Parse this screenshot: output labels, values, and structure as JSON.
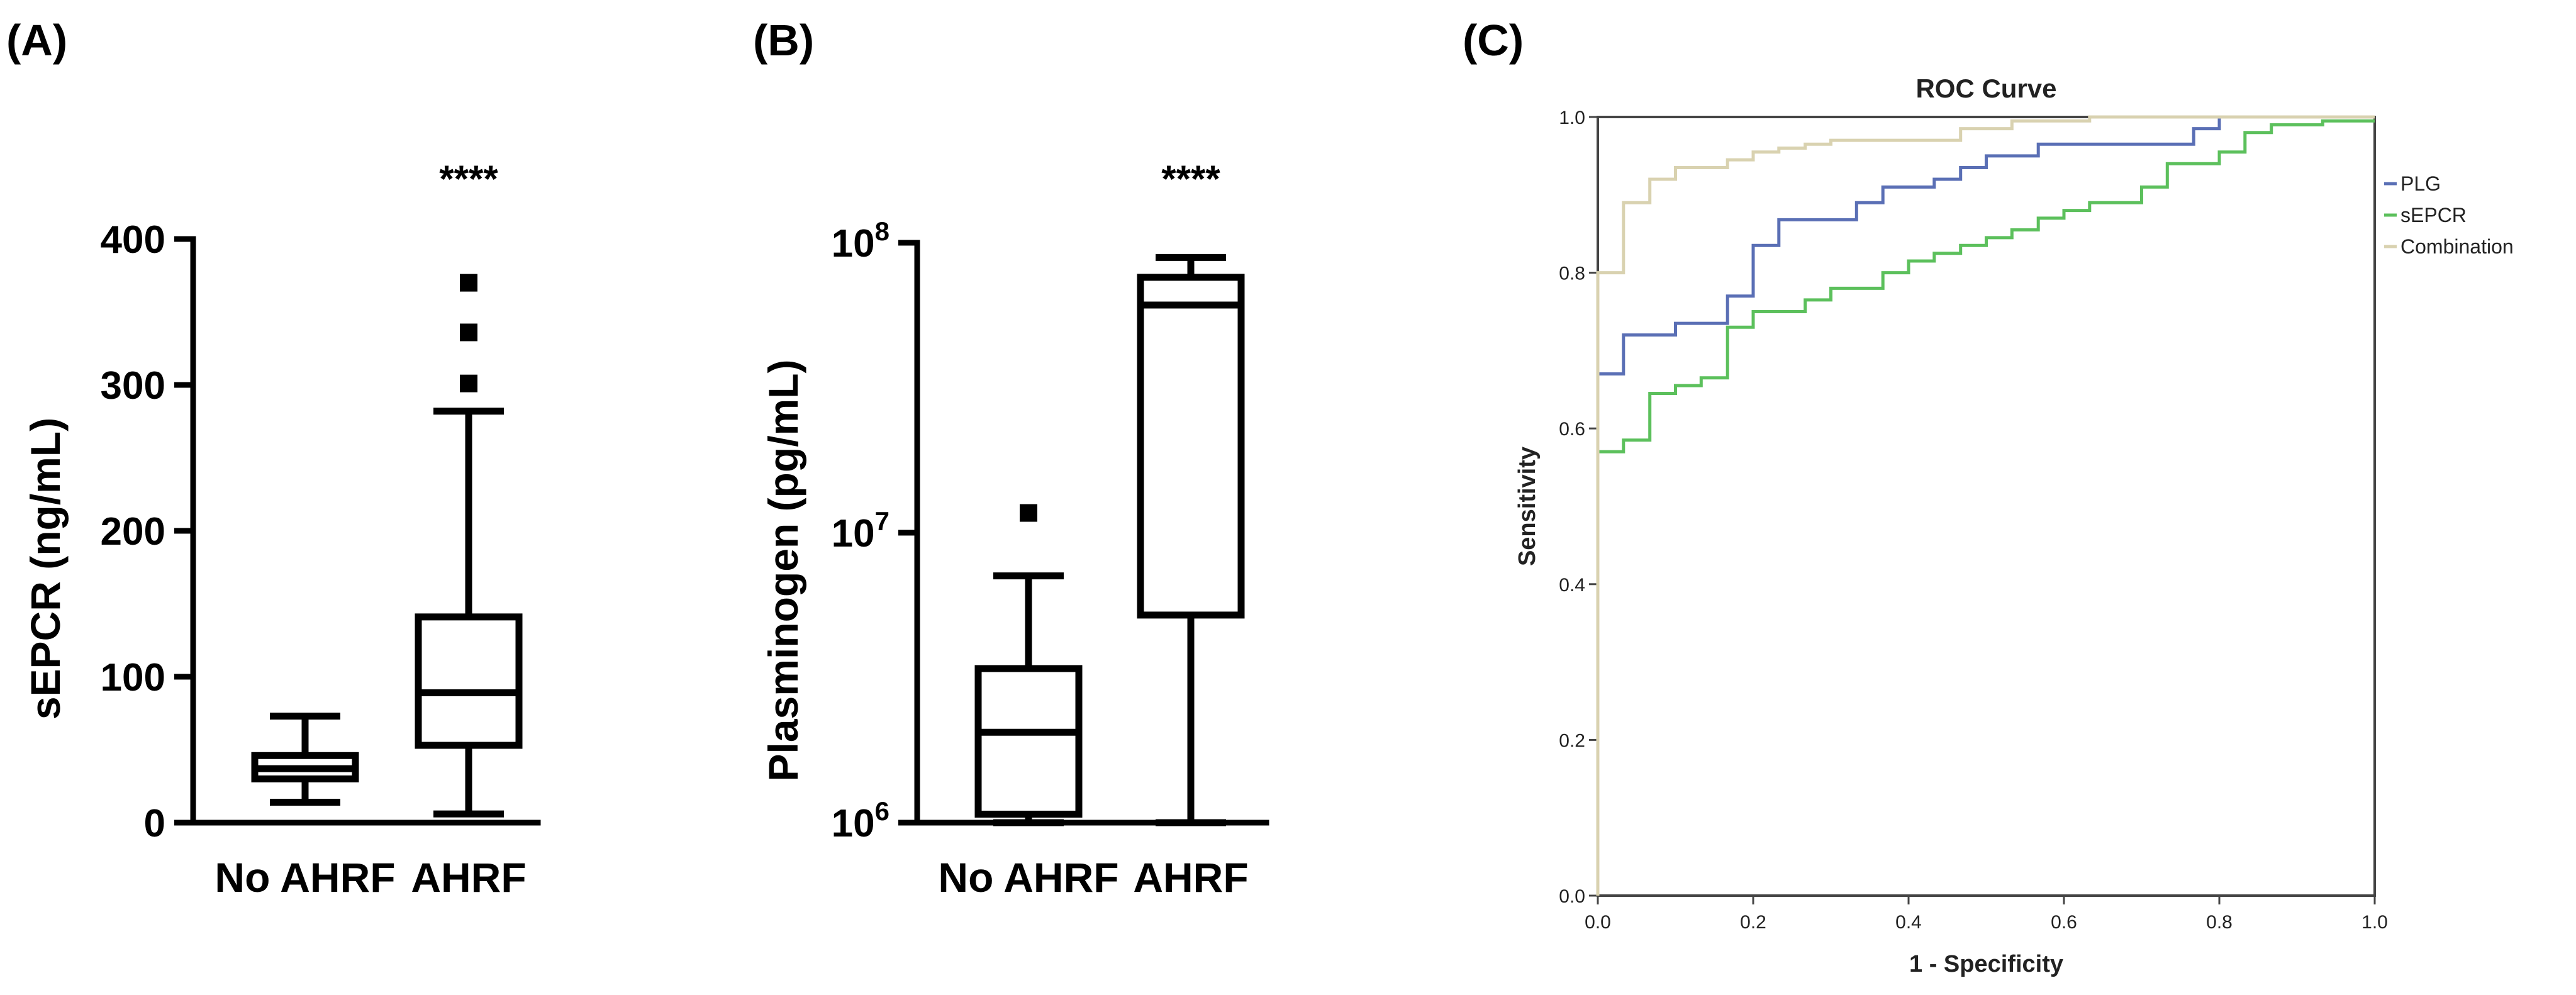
{
  "panels": {
    "a_label": "(A)",
    "b_label": "(B)",
    "c_label": "(C)"
  },
  "chart_data": [
    {
      "type": "box",
      "panel": "(A)",
      "ylabel": "sEPCR (ng/mL)",
      "ylim": [
        0,
        400
      ],
      "yticks": [
        "0",
        "100",
        "200",
        "300",
        "400"
      ],
      "categories": [
        "No AHRF",
        "AHRF"
      ],
      "significance": "****",
      "boxes": [
        {
          "name": "No AHRF",
          "min": 14,
          "q1": 30,
          "median": 37,
          "q3": 46,
          "max": 73,
          "outliers": []
        },
        {
          "name": "AHRF",
          "min": 6,
          "q1": 53,
          "median": 89,
          "q3": 141,
          "max": 282,
          "outliers": [
            301,
            336,
            370
          ]
        }
      ]
    },
    {
      "type": "box",
      "panel": "(B)",
      "ylabel": "Plasminogen (pg/mL)",
      "yscale": "log",
      "ylim": [
        1000000,
        100000000
      ],
      "yticks": [
        {
          "base": "10",
          "exp": "6"
        },
        {
          "base": "10",
          "exp": "7"
        },
        {
          "base": "10",
          "exp": "8"
        }
      ],
      "categories": [
        "No AHRF",
        "AHRF"
      ],
      "significance": "****",
      "boxes": [
        {
          "name": "No AHRF",
          "min": 1000000,
          "q1": 1070000,
          "median": 2050000,
          "q3": 3400000,
          "max": 7100000,
          "outliers": [
            11700000
          ]
        },
        {
          "name": "AHRF",
          "min": 1000000,
          "q1": 5200000,
          "median": 61000000,
          "q3": 76000000,
          "max": 89000000,
          "outliers": []
        }
      ]
    },
    {
      "type": "line",
      "panel": "(C)",
      "title": "ROC Curve",
      "xlabel": "1 - Specificity",
      "ylabel": "Sensitivity",
      "xlim": [
        0,
        1
      ],
      "ylim": [
        0,
        1
      ],
      "xticks": [
        "0.0",
        "0.2",
        "0.4",
        "0.6",
        "0.8",
        "1.0"
      ],
      "yticks": [
        "0.0",
        "0.2",
        "0.4",
        "0.6",
        "0.8",
        "1.0"
      ],
      "series": [
        {
          "name": "PLG",
          "color": "#5a6fb5",
          "points": [
            [
              0,
              0
            ],
            [
              0,
              0.67
            ],
            [
              0.033,
              0.67
            ],
            [
              0.033,
              0.72
            ],
            [
              0.1,
              0.72
            ],
            [
              0.1,
              0.735
            ],
            [
              0.167,
              0.735
            ],
            [
              0.167,
              0.77
            ],
            [
              0.2,
              0.77
            ],
            [
              0.2,
              0.835
            ],
            [
              0.233,
              0.835
            ],
            [
              0.233,
              0.868
            ],
            [
              0.333,
              0.868
            ],
            [
              0.333,
              0.89
            ],
            [
              0.367,
              0.89
            ],
            [
              0.367,
              0.91
            ],
            [
              0.433,
              0.91
            ],
            [
              0.433,
              0.92
            ],
            [
              0.467,
              0.92
            ],
            [
              0.467,
              0.935
            ],
            [
              0.5,
              0.935
            ],
            [
              0.5,
              0.95
            ],
            [
              0.567,
              0.95
            ],
            [
              0.567,
              0.965
            ],
            [
              0.767,
              0.965
            ],
            [
              0.767,
              0.985
            ],
            [
              0.8,
              0.985
            ],
            [
              0.8,
              1.0
            ],
            [
              1.0,
              1.0
            ]
          ]
        },
        {
          "name": "sEPCR",
          "color": "#5cc05c",
          "points": [
            [
              0,
              0
            ],
            [
              0,
              0.57
            ],
            [
              0.033,
              0.57
            ],
            [
              0.033,
              0.585
            ],
            [
              0.067,
              0.585
            ],
            [
              0.067,
              0.645
            ],
            [
              0.1,
              0.645
            ],
            [
              0.1,
              0.655
            ],
            [
              0.133,
              0.655
            ],
            [
              0.133,
              0.665
            ],
            [
              0.167,
              0.665
            ],
            [
              0.167,
              0.73
            ],
            [
              0.2,
              0.73
            ],
            [
              0.2,
              0.75
            ],
            [
              0.267,
              0.75
            ],
            [
              0.267,
              0.765
            ],
            [
              0.3,
              0.765
            ],
            [
              0.3,
              0.78
            ],
            [
              0.367,
              0.78
            ],
            [
              0.367,
              0.8
            ],
            [
              0.4,
              0.8
            ],
            [
              0.4,
              0.815
            ],
            [
              0.433,
              0.815
            ],
            [
              0.433,
              0.825
            ],
            [
              0.467,
              0.825
            ],
            [
              0.467,
              0.835
            ],
            [
              0.5,
              0.835
            ],
            [
              0.5,
              0.845
            ],
            [
              0.533,
              0.845
            ],
            [
              0.533,
              0.855
            ],
            [
              0.567,
              0.855
            ],
            [
              0.567,
              0.87
            ],
            [
              0.6,
              0.87
            ],
            [
              0.6,
              0.88
            ],
            [
              0.633,
              0.88
            ],
            [
              0.633,
              0.89
            ],
            [
              0.7,
              0.89
            ],
            [
              0.7,
              0.91
            ],
            [
              0.733,
              0.91
            ],
            [
              0.733,
              0.94
            ],
            [
              0.8,
              0.94
            ],
            [
              0.8,
              0.955
            ],
            [
              0.833,
              0.955
            ],
            [
              0.833,
              0.98
            ],
            [
              0.867,
              0.98
            ],
            [
              0.867,
              0.99
            ],
            [
              0.933,
              0.99
            ],
            [
              0.933,
              0.995
            ],
            [
              1.0,
              0.995
            ]
          ]
        },
        {
          "name": "Combination",
          "color": "#d9d2b0",
          "points": [
            [
              0,
              0
            ],
            [
              0,
              0.8
            ],
            [
              0.033,
              0.8
            ],
            [
              0.033,
              0.89
            ],
            [
              0.067,
              0.89
            ],
            [
              0.067,
              0.92
            ],
            [
              0.1,
              0.92
            ],
            [
              0.1,
              0.935
            ],
            [
              0.167,
              0.935
            ],
            [
              0.167,
              0.945
            ],
            [
              0.2,
              0.945
            ],
            [
              0.2,
              0.955
            ],
            [
              0.233,
              0.955
            ],
            [
              0.233,
              0.96
            ],
            [
              0.267,
              0.96
            ],
            [
              0.267,
              0.965
            ],
            [
              0.3,
              0.965
            ],
            [
              0.3,
              0.97
            ],
            [
              0.467,
              0.97
            ],
            [
              0.467,
              0.985
            ],
            [
              0.533,
              0.985
            ],
            [
              0.533,
              0.995
            ],
            [
              0.633,
              0.995
            ],
            [
              0.633,
              1.0
            ],
            [
              1.0,
              1.0
            ]
          ]
        }
      ],
      "legend": "right"
    }
  ]
}
